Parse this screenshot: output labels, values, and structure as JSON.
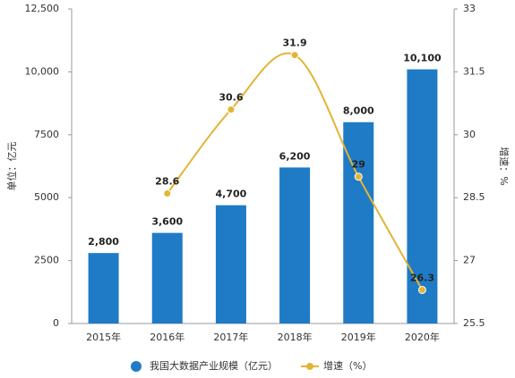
{
  "chart_data": {
    "type": "bar",
    "categories": [
      "2015年",
      "2016年",
      "2017年",
      "2018年",
      "2019年",
      "2020年"
    ],
    "y_label": "单位：亿元",
    "y2_label": "增速：%",
    "series": [
      {
        "name": "我国大数据产业规模（亿元）",
        "type": "bar",
        "color": "#1f7bc6",
        "values": [
          2800,
          3600,
          4700,
          6200,
          8000,
          10100
        ],
        "value_labels": [
          "2,800",
          "3,600",
          "4,700",
          "6,200",
          "8,000",
          "10,100"
        ]
      },
      {
        "name": "增速（%）",
        "type": "line",
        "axis": "y2",
        "color": "#e2b534",
        "values": [
          null,
          28.6,
          30.6,
          31.9,
          29,
          26.3
        ]
      }
    ],
    "ylim": [
      0,
      12500
    ],
    "yticks": [
      0,
      2500,
      5000,
      7500,
      {
        "value": 10000,
        "label": "10,000"
      },
      {
        "value": 12500,
        "label": "12,500"
      }
    ],
    "y2lim": [
      25.5,
      33
    ],
    "y2ticks": [
      25.5,
      27,
      28.5,
      30,
      31.5,
      33
    ],
    "grid": false,
    "legend": "bottom"
  }
}
